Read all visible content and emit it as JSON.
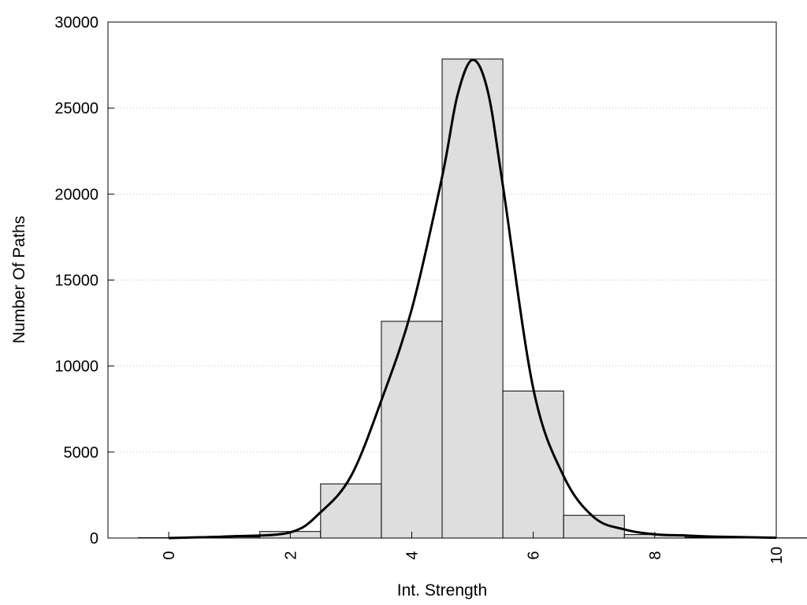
{
  "chart_data": {
    "type": "bar",
    "title": "",
    "xlabel": "Int. Strength",
    "ylabel": "Number Of Paths",
    "xlim": [
      -1,
      10
    ],
    "ylim": [
      0,
      30000
    ],
    "x_ticks": [
      0,
      2,
      4,
      6,
      8,
      10
    ],
    "y_ticks": [
      0,
      5000,
      10000,
      15000,
      20000,
      25000,
      30000
    ],
    "grid": "horizontal dotted",
    "legend": "none",
    "bin_width": 1,
    "bars": [
      {
        "x": 0,
        "value": 20
      },
      {
        "x": 1,
        "value": 60
      },
      {
        "x": 2,
        "value": 380
      },
      {
        "x": 3,
        "value": 3150
      },
      {
        "x": 4,
        "value": 12600
      },
      {
        "x": 5,
        "value": 27850
      },
      {
        "x": 6,
        "value": 8550
      },
      {
        "x": 7,
        "value": 1320
      },
      {
        "x": 8,
        "value": 200
      },
      {
        "x": 9,
        "value": 40
      },
      {
        "x": 10,
        "value": 10
      }
    ],
    "curve": {
      "x": [
        0,
        1,
        2,
        2.5,
        3,
        3.5,
        4,
        4.5,
        4.75,
        5,
        5.25,
        5.5,
        6,
        6.5,
        7,
        7.5,
        8,
        8.5,
        9,
        10
      ],
      "y": [
        0,
        100,
        330,
        1500,
        3600,
        8000,
        13300,
        21000,
        25700,
        27800,
        26000,
        20500,
        8700,
        3600,
        1200,
        500,
        220,
        150,
        80,
        20
      ]
    },
    "colors": {
      "bar_fill": "#dedede",
      "bar_stroke": "#000000",
      "curve": "#000000",
      "grid": "#bfbfbf"
    }
  }
}
